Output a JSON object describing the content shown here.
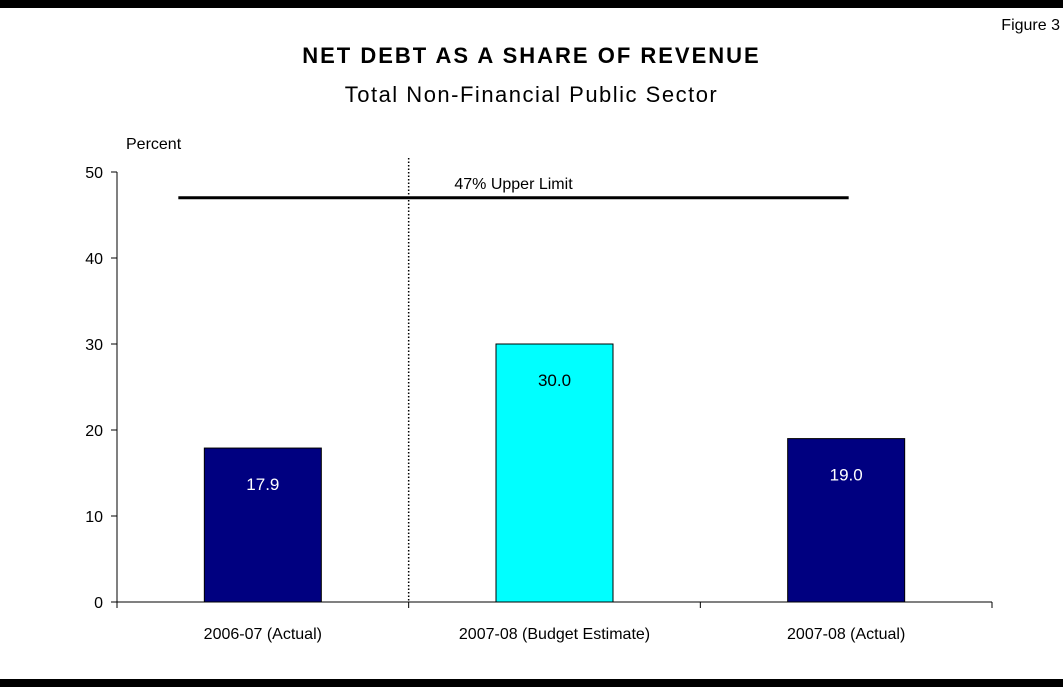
{
  "figure_label": "Figure 3",
  "chart_data": {
    "type": "bar",
    "title": "NET DEBT AS A SHARE OF REVENUE",
    "subtitle": "Total Non-Financial Public Sector",
    "ylabel": "Percent",
    "xlabel": "",
    "ylim": [
      0,
      50
    ],
    "yticks": [
      0,
      10,
      20,
      30,
      40,
      50
    ],
    "grid": false,
    "categories": [
      "2006-07 (Actual)",
      "2007-08 (Budget Estimate)",
      "2007-08 (Actual)"
    ],
    "values": [
      17.9,
      30.0,
      19.0
    ],
    "value_labels": [
      "17.9",
      "30.0",
      "19.0"
    ],
    "bar_colors": [
      "#000080",
      "#00FFFF",
      "#000080"
    ],
    "value_label_colors": [
      "#FFFFFF",
      "#000000",
      "#FFFFFF"
    ],
    "reference_line": {
      "value": 47,
      "label": "47% Upper Limit",
      "from_category": 0,
      "to_category": 2
    },
    "divider_after_category": 0
  }
}
